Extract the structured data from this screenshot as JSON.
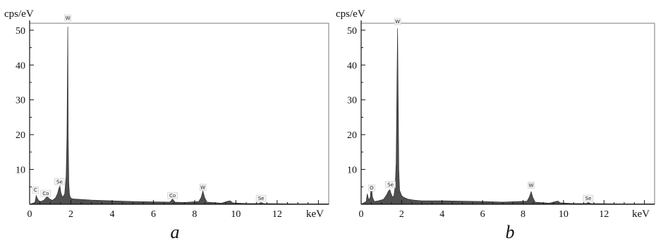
{
  "chart_data": [
    {
      "type": "area",
      "caption": "a",
      "ylabel": "cps/eV",
      "xlabel": "keV",
      "xlim": [
        0,
        14.5
      ],
      "ylim": [
        0,
        52
      ],
      "xticks": [
        0,
        2,
        4,
        6,
        8,
        10,
        12
      ],
      "yticks": [
        10,
        20,
        30,
        40,
        50
      ],
      "x": [
        0.0,
        0.25,
        0.28,
        0.32,
        0.38,
        0.45,
        0.55,
        0.7,
        0.85,
        0.95,
        1.1,
        1.25,
        1.35,
        1.42,
        1.47,
        1.52,
        1.6,
        1.7,
        1.77,
        1.81,
        1.85,
        1.87,
        1.9,
        1.93,
        1.97,
        2.05,
        2.2,
        2.5,
        3.0,
        4.0,
        5.0,
        6.0,
        6.8,
        6.93,
        7.05,
        7.5,
        8.2,
        8.32,
        8.4,
        8.48,
        8.6,
        9.3,
        9.62,
        9.72,
        9.85,
        10.5,
        11.1,
        11.22,
        11.35,
        12.0,
        13.0,
        14.5
      ],
      "y": [
        0.0,
        0.5,
        1.2,
        2.5,
        1.6,
        1.0,
        0.8,
        1.2,
        2.3,
        1.6,
        1.1,
        1.8,
        3.0,
        4.6,
        5.2,
        3.2,
        2.0,
        3.0,
        8.0,
        20.0,
        51.0,
        20.0,
        6.0,
        3.0,
        2.0,
        1.6,
        1.5,
        1.4,
        1.2,
        1.0,
        0.8,
        0.7,
        0.6,
        1.5,
        0.6,
        0.5,
        0.8,
        2.0,
        3.8,
        2.0,
        0.6,
        0.3,
        0.9,
        1.0,
        0.4,
        0.2,
        0.2,
        0.5,
        0.2,
        0.15,
        0.1,
        0.1
      ],
      "peak_labels": [
        {
          "label": "C",
          "x": 0.28,
          "y": 3.6
        },
        {
          "label": "Co",
          "x": 0.78,
          "y": 2.6
        },
        {
          "label": "Se",
          "x": 1.45,
          "y": 6.0
        },
        {
          "label": "W",
          "x": 1.85,
          "y": 53.0
        },
        {
          "label": "Co",
          "x": 6.93,
          "y": 2.0
        },
        {
          "label": "W",
          "x": 8.4,
          "y": 4.4
        },
        {
          "label": "Se",
          "x": 11.22,
          "y": 1.2
        }
      ]
    },
    {
      "type": "area",
      "caption": "b",
      "ylabel": "cps/eV",
      "xlabel": "keV",
      "xlim": [
        0,
        14.5
      ],
      "ylim": [
        0,
        52
      ],
      "xticks": [
        0,
        2,
        4,
        6,
        8,
        10,
        12
      ],
      "yticks": [
        10,
        20,
        30,
        40,
        50
      ],
      "x": [
        0.0,
        0.25,
        0.3,
        0.38,
        0.45,
        0.5,
        0.56,
        0.65,
        0.85,
        1.1,
        1.25,
        1.35,
        1.42,
        1.47,
        1.55,
        1.62,
        1.68,
        1.73,
        1.77,
        1.8,
        1.83,
        1.86,
        1.9,
        2.0,
        2.1,
        2.3,
        2.6,
        3.0,
        4.0,
        5.0,
        6.0,
        7.0,
        8.2,
        8.32,
        8.4,
        8.48,
        8.6,
        9.3,
        9.62,
        9.72,
        9.85,
        10.5,
        11.1,
        11.22,
        11.35,
        12.0,
        13.0,
        14.5
      ],
      "y": [
        0.0,
        0.8,
        3.0,
        1.2,
        2.0,
        5.5,
        2.0,
        0.8,
        1.0,
        1.4,
        2.6,
        3.8,
        4.2,
        3.2,
        2.0,
        2.5,
        5.0,
        12.0,
        35.0,
        50.5,
        30.0,
        10.0,
        4.0,
        2.5,
        2.0,
        1.5,
        1.2,
        1.0,
        1.0,
        0.9,
        0.8,
        0.6,
        0.9,
        2.2,
        3.6,
        2.0,
        0.6,
        0.3,
        0.8,
        0.9,
        0.4,
        0.2,
        0.2,
        0.5,
        0.2,
        0.15,
        0.1,
        0.1
      ],
      "peak_labels": [
        {
          "label": "O",
          "x": 0.52,
          "y": 4.2
        },
        {
          "label": "Se",
          "x": 1.45,
          "y": 5.2
        },
        {
          "label": "W",
          "x": 1.8,
          "y": 52.0
        },
        {
          "label": "W",
          "x": 8.4,
          "y": 5.0
        },
        {
          "label": "Se",
          "x": 11.22,
          "y": 1.2
        }
      ]
    }
  ]
}
